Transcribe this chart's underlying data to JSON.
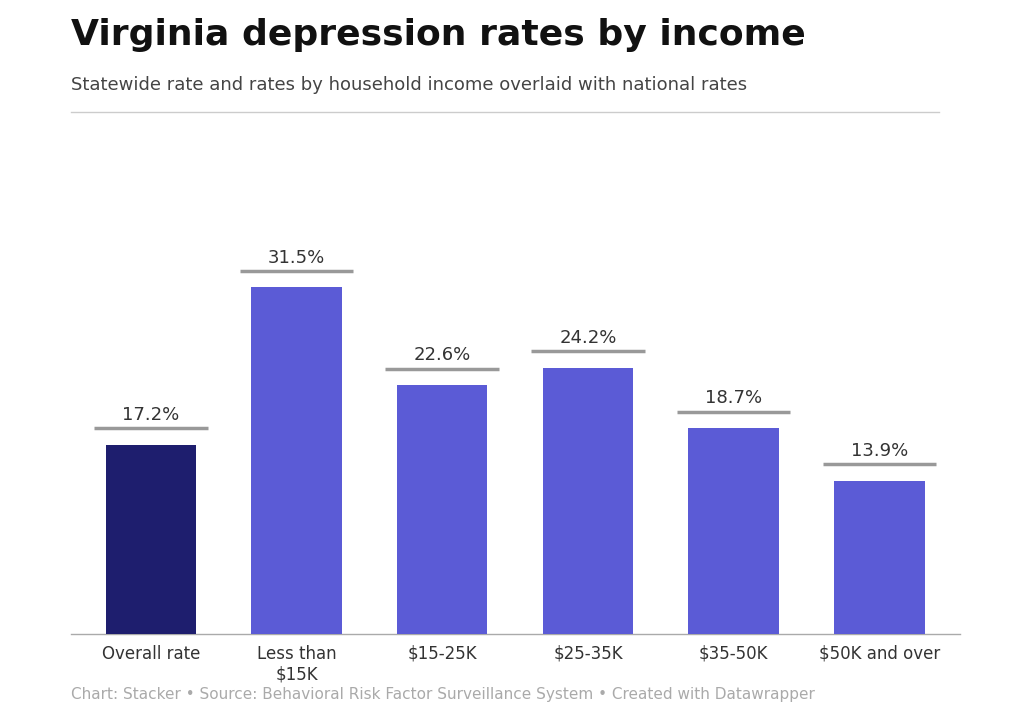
{
  "title": "Virginia depression rates by income",
  "subtitle": "Statewide rate and rates by household income overlaid with national rates",
  "caption": "Chart: Stacker • Source: Behavioral Risk Factor Surveillance System • Created with Datawrapper",
  "categories": [
    "Overall rate",
    "Less than\n$15K",
    "$15-25K",
    "$25-35K",
    "$35-50K",
    "$50K and over"
  ],
  "values": [
    17.2,
    31.5,
    22.6,
    24.2,
    18.7,
    13.9
  ],
  "bar_colors": [
    "#1e1e6e",
    "#5b5bd6",
    "#5b5bd6",
    "#5b5bd6",
    "#5b5bd6",
    "#5b5bd6"
  ],
  "national_line_color": "#999999",
  "label_color": "#333333",
  "background_color": "#ffffff",
  "title_fontsize": 26,
  "subtitle_fontsize": 13,
  "label_fontsize": 13,
  "tick_fontsize": 12,
  "caption_fontsize": 11,
  "ylim": [
    0,
    38
  ],
  "bar_width": 0.62,
  "national_line_extra": 0.08,
  "national_line_above": 1.5
}
